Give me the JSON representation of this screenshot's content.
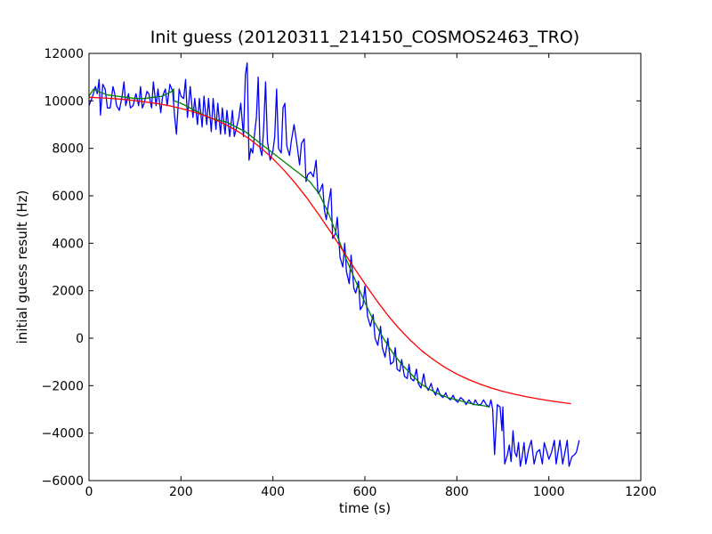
{
  "chart_data": {
    "type": "line",
    "title": "Init guess (20120311_214150_COSMOS2463_TRO)",
    "xlabel": "time (s)",
    "ylabel": "initial guess result (Hz)",
    "xlim": [
      0,
      1200
    ],
    "ylim": [
      -6000,
      12000
    ],
    "x_ticks": [
      0,
      200,
      400,
      600,
      800,
      1000,
      1200
    ],
    "y_ticks": [
      -6000,
      -4000,
      -2000,
      0,
      2000,
      4000,
      6000,
      8000,
      10000,
      12000
    ],
    "grid": false,
    "legend": "none",
    "colors": {
      "raw": "#0000ff",
      "smooth": "#008000",
      "fit": "#ff0000"
    },
    "series": [
      {
        "color": "#0000ff",
        "points": [
          [
            0,
            9800
          ],
          [
            8,
            10200
          ],
          [
            14,
            10600
          ],
          [
            18,
            10300
          ],
          [
            22,
            10900
          ],
          [
            25,
            9400
          ],
          [
            30,
            10700
          ],
          [
            35,
            10500
          ],
          [
            40,
            9700
          ],
          [
            46,
            9700
          ],
          [
            52,
            10600
          ],
          [
            56,
            10300
          ],
          [
            60,
            9800
          ],
          [
            66,
            9600
          ],
          [
            72,
            10200
          ],
          [
            76,
            10800
          ],
          [
            80,
            9800
          ],
          [
            86,
            10300
          ],
          [
            90,
            9700
          ],
          [
            96,
            9800
          ],
          [
            102,
            10300
          ],
          [
            108,
            9800
          ],
          [
            112,
            10600
          ],
          [
            116,
            9700
          ],
          [
            120,
            9900
          ],
          [
            126,
            10400
          ],
          [
            130,
            10300
          ],
          [
            136,
            9700
          ],
          [
            140,
            10800
          ],
          [
            146,
            9800
          ],
          [
            150,
            10500
          ],
          [
            156,
            9500
          ],
          [
            160,
            10200
          ],
          [
            166,
            10500
          ],
          [
            170,
            9800
          ],
          [
            176,
            10700
          ],
          [
            182,
            10400
          ],
          [
            186,
            9400
          ],
          [
            190,
            8600
          ],
          [
            196,
            10500
          ],
          [
            200,
            10200
          ],
          [
            206,
            10100
          ],
          [
            210,
            10900
          ],
          [
            214,
            9300
          ],
          [
            220,
            10600
          ],
          [
            226,
            9300
          ],
          [
            230,
            10100
          ],
          [
            236,
            9000
          ],
          [
            240,
            10100
          ],
          [
            246,
            8900
          ],
          [
            250,
            10200
          ],
          [
            256,
            9000
          ],
          [
            260,
            10100
          ],
          [
            266,
            8700
          ],
          [
            270,
            10100
          ],
          [
            276,
            8800
          ],
          [
            280,
            9900
          ],
          [
            286,
            8600
          ],
          [
            290,
            9700
          ],
          [
            296,
            8600
          ],
          [
            300,
            9600
          ],
          [
            306,
            8500
          ],
          [
            312,
            9600
          ],
          [
            316,
            8500
          ],
          [
            320,
            8800
          ],
          [
            326,
            9300
          ],
          [
            330,
            9900
          ],
          [
            336,
            8500
          ],
          [
            340,
            11100
          ],
          [
            344,
            11600
          ],
          [
            348,
            7500
          ],
          [
            352,
            8000
          ],
          [
            356,
            7800
          ],
          [
            360,
            8600
          ],
          [
            364,
            9300
          ],
          [
            368,
            11000
          ],
          [
            372,
            8000
          ],
          [
            376,
            7700
          ],
          [
            380,
            8900
          ],
          [
            384,
            10800
          ],
          [
            388,
            8300
          ],
          [
            394,
            7500
          ],
          [
            400,
            7900
          ],
          [
            404,
            8500
          ],
          [
            408,
            10500
          ],
          [
            412,
            8000
          ],
          [
            418,
            7800
          ],
          [
            422,
            9700
          ],
          [
            426,
            9900
          ],
          [
            430,
            8100
          ],
          [
            436,
            7700
          ],
          [
            440,
            8300
          ],
          [
            446,
            9000
          ],
          [
            452,
            8200
          ],
          [
            458,
            7300
          ],
          [
            462,
            8200
          ],
          [
            468,
            8400
          ],
          [
            472,
            6600
          ],
          [
            476,
            6900
          ],
          [
            482,
            7000
          ],
          [
            488,
            6800
          ],
          [
            494,
            7500
          ],
          [
            498,
            6100
          ],
          [
            502,
            6200
          ],
          [
            508,
            6500
          ],
          [
            512,
            5400
          ],
          [
            516,
            5000
          ],
          [
            520,
            5600
          ],
          [
            526,
            6300
          ],
          [
            530,
            4200
          ],
          [
            536,
            4400
          ],
          [
            540,
            5100
          ],
          [
            546,
            3400
          ],
          [
            552,
            3000
          ],
          [
            556,
            4000
          ],
          [
            560,
            2800
          ],
          [
            566,
            2300
          ],
          [
            570,
            3500
          ],
          [
            576,
            2100
          ],
          [
            580,
            1900
          ],
          [
            586,
            2400
          ],
          [
            590,
            1200
          ],
          [
            596,
            1400
          ],
          [
            600,
            2200
          ],
          [
            606,
            900
          ],
          [
            612,
            500
          ],
          [
            618,
            1000
          ],
          [
            622,
            0
          ],
          [
            628,
            -300
          ],
          [
            634,
            500
          ],
          [
            638,
            -400
          ],
          [
            644,
            -800
          ],
          [
            650,
            0
          ],
          [
            656,
            -1100
          ],
          [
            662,
            -1000
          ],
          [
            666,
            -400
          ],
          [
            670,
            -1300
          ],
          [
            676,
            -1400
          ],
          [
            680,
            -900
          ],
          [
            686,
            -1600
          ],
          [
            692,
            -1700
          ],
          [
            696,
            -1100
          ],
          [
            700,
            -1700
          ],
          [
            706,
            -1800
          ],
          [
            712,
            -1300
          ],
          [
            716,
            -1900
          ],
          [
            722,
            -2100
          ],
          [
            728,
            -1500
          ],
          [
            732,
            -2000
          ],
          [
            738,
            -2200
          ],
          [
            744,
            -1900
          ],
          [
            748,
            -2200
          ],
          [
            754,
            -2400
          ],
          [
            758,
            -2100
          ],
          [
            764,
            -2400
          ],
          [
            770,
            -2500
          ],
          [
            776,
            -2300
          ],
          [
            780,
            -2500
          ],
          [
            786,
            -2600
          ],
          [
            792,
            -2400
          ],
          [
            796,
            -2600
          ],
          [
            802,
            -2700
          ],
          [
            808,
            -2500
          ],
          [
            814,
            -2600
          ],
          [
            820,
            -2800
          ],
          [
            826,
            -2600
          ],
          [
            830,
            -2700
          ],
          [
            836,
            -2800
          ],
          [
            840,
            -2600
          ],
          [
            846,
            -2800
          ],
          [
            852,
            -2800
          ],
          [
            858,
            -2600
          ],
          [
            864,
            -2800
          ],
          [
            870,
            -2900
          ],
          [
            874,
            -2600
          ],
          [
            878,
            -3000
          ],
          [
            882,
            -4900
          ],
          [
            888,
            -2800
          ],
          [
            894,
            -2900
          ],
          [
            898,
            -3900
          ],
          [
            900,
            -2900
          ],
          [
            904,
            -5300
          ],
          [
            910,
            -4900
          ],
          [
            914,
            -4500
          ],
          [
            918,
            -5200
          ],
          [
            922,
            -3900
          ],
          [
            926,
            -4800
          ],
          [
            930,
            -5000
          ],
          [
            934,
            -4400
          ],
          [
            938,
            -5400
          ],
          [
            942,
            -5000
          ],
          [
            946,
            -4400
          ],
          [
            950,
            -5300
          ],
          [
            956,
            -4700
          ],
          [
            962,
            -4300
          ],
          [
            968,
            -5300
          ],
          [
            974,
            -4800
          ],
          [
            980,
            -4700
          ],
          [
            986,
            -5300
          ],
          [
            990,
            -4400
          ],
          [
            996,
            -4800
          ],
          [
            1000,
            -5100
          ],
          [
            1006,
            -4800
          ],
          [
            1012,
            -4300
          ],
          [
            1016,
            -5300
          ],
          [
            1020,
            -4800
          ],
          [
            1024,
            -4300
          ],
          [
            1030,
            -5300
          ],
          [
            1036,
            -4700
          ],
          [
            1040,
            -4300
          ],
          [
            1044,
            -5400
          ],
          [
            1050,
            -5000
          ],
          [
            1056,
            -4900
          ],
          [
            1060,
            -4800
          ],
          [
            1066,
            -4300
          ]
        ]
      },
      {
        "color": "#008000",
        "points": [
          [
            0,
            10200
          ],
          [
            10,
            10500
          ],
          [
            20,
            10400
          ],
          [
            40,
            10250
          ],
          [
            60,
            10200
          ],
          [
            80,
            10150
          ],
          [
            100,
            10100
          ],
          [
            120,
            10100
          ],
          [
            140,
            10150
          ],
          [
            160,
            10200
          ],
          [
            180,
            10400
          ],
          [
            184,
            10500
          ],
          [
            185,
            10000
          ],
          [
            200,
            9900
          ],
          [
            220,
            9700
          ],
          [
            240,
            9500
          ],
          [
            260,
            9300
          ],
          [
            280,
            9200
          ],
          [
            300,
            9100
          ],
          [
            320,
            8900
          ],
          [
            340,
            8700
          ],
          [
            360,
            8400
          ],
          [
            380,
            8100
          ],
          [
            400,
            7800
          ],
          [
            420,
            7500
          ],
          [
            440,
            7200
          ],
          [
            460,
            6900
          ],
          [
            480,
            6600
          ],
          [
            500,
            6100
          ],
          [
            520,
            5300
          ],
          [
            540,
            4300
          ],
          [
            560,
            3300
          ],
          [
            580,
            2400
          ],
          [
            600,
            1500
          ],
          [
            620,
            700
          ],
          [
            640,
            0
          ],
          [
            660,
            -600
          ],
          [
            680,
            -1100
          ],
          [
            700,
            -1500
          ],
          [
            720,
            -1900
          ],
          [
            740,
            -2150
          ],
          [
            760,
            -2350
          ],
          [
            780,
            -2500
          ],
          [
            800,
            -2600
          ],
          [
            820,
            -2700
          ],
          [
            840,
            -2800
          ],
          [
            860,
            -2850
          ],
          [
            870,
            -2900
          ]
        ]
      },
      {
        "color": "#ff0000",
        "points": [
          [
            0,
            10150
          ],
          [
            25,
            10130
          ],
          [
            50,
            10100
          ],
          [
            75,
            10060
          ],
          [
            100,
            10010
          ],
          [
            125,
            9950
          ],
          [
            150,
            9880
          ],
          [
            175,
            9790
          ],
          [
            200,
            9680
          ],
          [
            225,
            9550
          ],
          [
            250,
            9390
          ],
          [
            275,
            9200
          ],
          [
            300,
            8970
          ],
          [
            325,
            8700
          ],
          [
            350,
            8380
          ],
          [
            375,
            8000
          ],
          [
            400,
            7560
          ],
          [
            425,
            7060
          ],
          [
            450,
            6500
          ],
          [
            475,
            5880
          ],
          [
            500,
            5200
          ],
          [
            525,
            4490
          ],
          [
            550,
            3750
          ],
          [
            575,
            3010
          ],
          [
            600,
            2290
          ],
          [
            625,
            1600
          ],
          [
            650,
            960
          ],
          [
            675,
            390
          ],
          [
            700,
            -110
          ],
          [
            725,
            -550
          ],
          [
            750,
            -920
          ],
          [
            775,
            -1240
          ],
          [
            800,
            -1510
          ],
          [
            825,
            -1740
          ],
          [
            850,
            -1930
          ],
          [
            875,
            -2100
          ],
          [
            900,
            -2240
          ],
          [
            925,
            -2360
          ],
          [
            950,
            -2460
          ],
          [
            975,
            -2550
          ],
          [
            1000,
            -2630
          ],
          [
            1025,
            -2700
          ],
          [
            1048,
            -2760
          ]
        ]
      }
    ]
  }
}
